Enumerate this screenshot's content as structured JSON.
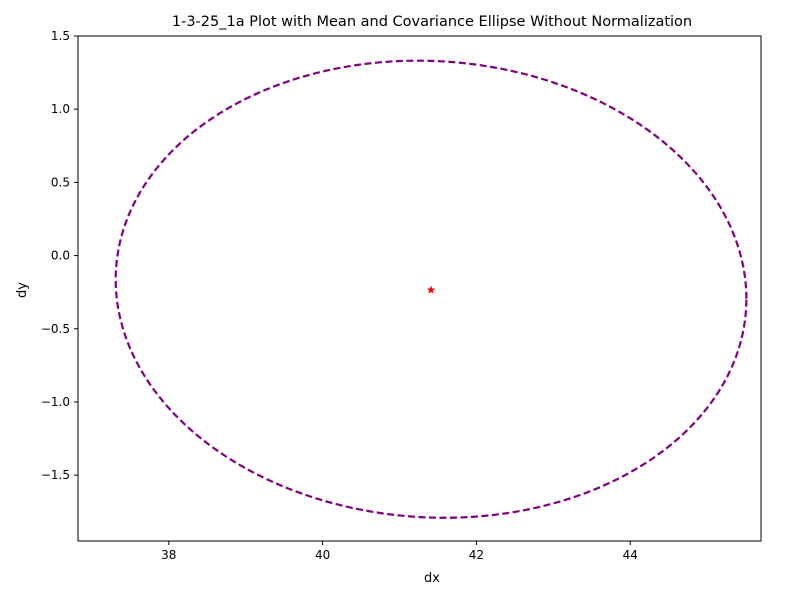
{
  "chart_data": {
    "type": "scatter",
    "title": "1-3-25_1a Plot with Mean and Covariance Ellipse Without Normalization",
    "xlabel": "dx",
    "ylabel": "dy",
    "xlim": [
      36.82,
      45.7
    ],
    "ylim": [
      -1.95,
      1.5
    ],
    "xticks": [
      38,
      40,
      42,
      44
    ],
    "yticks": [
      -1.5,
      -1.0,
      -0.5,
      0.0,
      0.5,
      1.0,
      1.5
    ],
    "xtick_labels": [
      "38",
      "40",
      "42",
      "44"
    ],
    "ytick_labels": [
      "−1.5",
      "−1.0",
      "−0.5",
      "0.0",
      "0.5",
      "1.0",
      "1.5"
    ],
    "grid": false,
    "mean": {
      "x": 41.41,
      "y": -0.235,
      "marker": "star",
      "color": "#ff0000"
    },
    "covariance_ellipse": {
      "center": [
        41.41,
        -0.23
      ],
      "semi_axis_x": 4.1,
      "semi_axis_y": 1.56,
      "tilt_dy_per_dx": -0.016,
      "line_style": "dashed",
      "color": "#800080"
    }
  }
}
